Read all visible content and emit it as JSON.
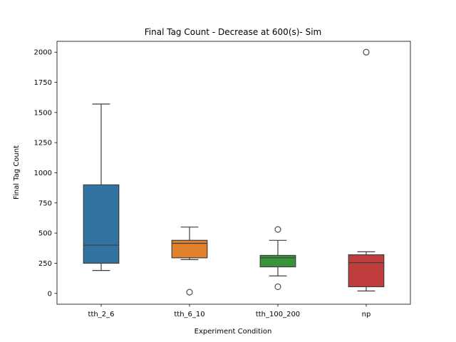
{
  "chart_data": {
    "type": "box",
    "title": "Final Tag Count - Decrease at 600(s)- Sim",
    "xlabel": "Experiment Condition",
    "ylabel": "Final Tag Count",
    "ylim": [
      -90,
      2090
    ],
    "yticks": [
      0,
      250,
      500,
      750,
      1000,
      1250,
      1500,
      1750,
      2000
    ],
    "grid": false,
    "categories": [
      "tth_2_6",
      "tth_6_10",
      "tth_100_200",
      "np"
    ],
    "colors": [
      "#3274a1",
      "#e1812c",
      "#3a923a",
      "#c03d3e"
    ],
    "boxes": [
      {
        "category": "tth_2_6",
        "whisker_low": 190,
        "q1": 250,
        "median": 400,
        "q3": 900,
        "whisker_high": 1570,
        "outliers": []
      },
      {
        "category": "tth_6_10",
        "whisker_low": 280,
        "q1": 295,
        "median": 415,
        "q3": 440,
        "whisker_high": 550,
        "outliers": [
          10
        ]
      },
      {
        "category": "tth_100_200",
        "whisker_low": 145,
        "q1": 220,
        "median": 295,
        "q3": 315,
        "whisker_high": 440,
        "outliers": [
          530,
          55
        ]
      },
      {
        "category": "np",
        "whisker_low": 20,
        "q1": 55,
        "median": 255,
        "q3": 320,
        "whisker_high": 345,
        "outliers": [
          2000
        ]
      }
    ]
  }
}
